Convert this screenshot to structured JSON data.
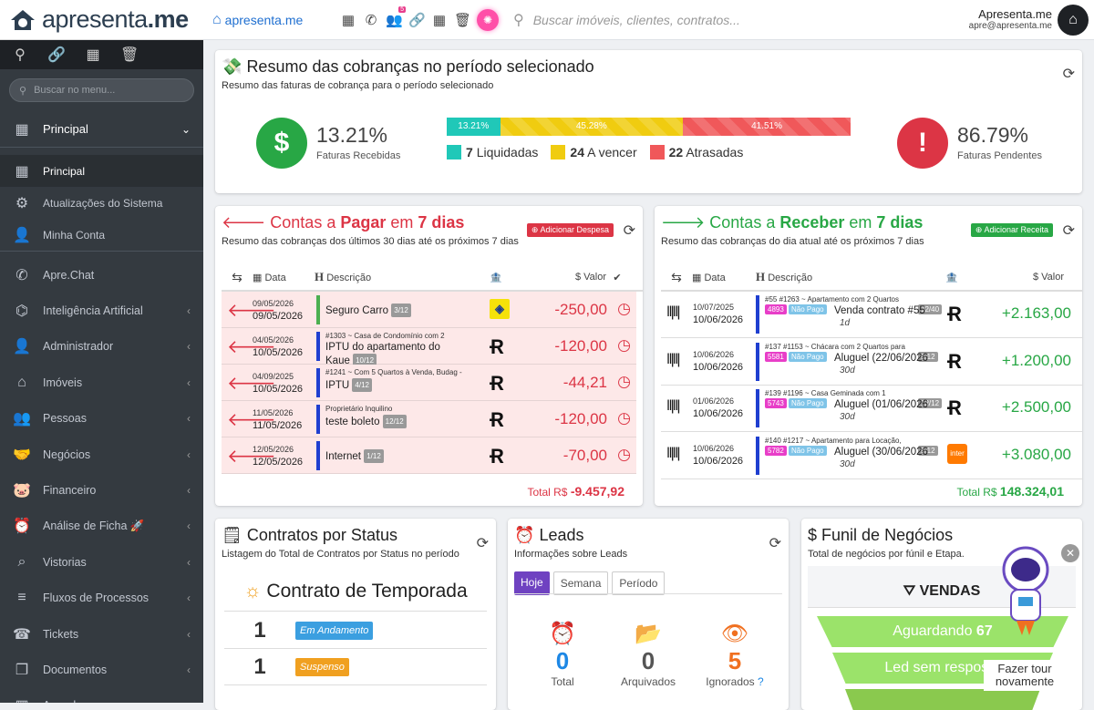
{
  "app": {
    "brand": "apresenta.me",
    "brand_prefix": "apresenta",
    "brand_suffix": ".me"
  },
  "sidebar": {
    "search_placeholder": "Buscar no menu...",
    "main_label": "Principal",
    "subitems": [
      {
        "label": "Principal"
      },
      {
        "label": "Atualizações do Sistema"
      },
      {
        "label": "Minha Conta"
      }
    ],
    "items": [
      {
        "label": "Apre.Chat",
        "icon": "whatsapp-icon",
        "glyph": "✆",
        "chevron": false
      },
      {
        "label": "Inteligência Artificial",
        "icon": "robot-icon",
        "glyph": "⌬",
        "chevron": true
      },
      {
        "label": "Administrador",
        "icon": "user-tie-icon",
        "glyph": "👤",
        "chevron": true
      },
      {
        "label": "Imóveis",
        "icon": "home-icon",
        "glyph": "⌂",
        "chevron": true
      },
      {
        "label": "Pessoas",
        "icon": "people-icon",
        "glyph": "👥",
        "chevron": true
      },
      {
        "label": "Negócios",
        "icon": "handshake-icon",
        "glyph": "🤝",
        "chevron": true
      },
      {
        "label": "Financeiro",
        "icon": "piggy-bank-icon",
        "glyph": "🐷",
        "chevron": true
      },
      {
        "label": "Análise de Ficha 🚀",
        "icon": "user-clock-icon",
        "glyph": "⏰",
        "chevron": true
      },
      {
        "label": "Vistorias",
        "icon": "house-search-icon",
        "glyph": "⌕",
        "chevron": true
      },
      {
        "label": "Fluxos de Processos",
        "icon": "filter-icon",
        "glyph": "≡",
        "chevron": true
      },
      {
        "label": "Tickets",
        "icon": "headset-icon",
        "glyph": "☎",
        "chevron": true
      },
      {
        "label": "Documentos",
        "icon": "copy-icon",
        "glyph": "❐",
        "chevron": true
      },
      {
        "label": "Agenda",
        "icon": "calendar-icon",
        "glyph": "▦",
        "chevron": true
      }
    ]
  },
  "topbar": {
    "search_placeholder": "Buscar imóveis, clientes, contratos...",
    "user_name": "Apresenta.me",
    "user_email": "apre@apresenta.me",
    "badge": "5"
  },
  "summary": {
    "title": "Resumo das cobranças no período selecionado",
    "subtitle": "Resumo das faturas de cobrança para o período selecionado",
    "received_pct": "13.21%",
    "received_label": "Faturas Recebidas",
    "pending_pct": "86.79%",
    "pending_label": "Faturas Pendentes",
    "bar": [
      {
        "label": "13.21%",
        "value": 13.21,
        "color": "#20c8b8"
      },
      {
        "label": "45.28%",
        "value": 45.28,
        "color": "#f0cc10"
      },
      {
        "label": "41.51%",
        "value": 41.51,
        "color": "#f0585a"
      }
    ],
    "legend": [
      {
        "count": "7",
        "label": "Liquidadas",
        "color": "#20c8b8"
      },
      {
        "count": "24",
        "label": "A vencer",
        "color": "#f0cc10"
      },
      {
        "count": "22",
        "label": "Atrasadas",
        "color": "#f0585a"
      }
    ]
  },
  "pagar": {
    "title_pre": "Contas a ",
    "title_b": "Pagar",
    "title_mid": " em ",
    "title_days": "7 dias",
    "subtitle": "Resumo das cobranças dos últimos 30 dias até os próximos 7 dias",
    "button": "Adicionar Despesa",
    "headers": {
      "date": "Data",
      "desc": "Descrição",
      "value": "Valor"
    },
    "rows": [
      {
        "d1": "09/05/2026",
        "d2": "09/05/2026",
        "ref": "",
        "desc": "Seguro Carro",
        "tag": "3/12",
        "value": "-250,00",
        "bar": "#4caf50",
        "logo": "bb"
      },
      {
        "d1": "04/05/2026",
        "d2": "10/05/2026",
        "ref": "#1303 ~ Casa de Condomínio com 2",
        "desc": "IPTU do apartamento do Kaue",
        "tag": "10/12",
        "value": "-120,00",
        "bar": "#1f3fd0",
        "logo": "r"
      },
      {
        "d1": "04/09/2025",
        "d2": "10/05/2026",
        "ref": "#1241 ~ Com 5 Quartos à Venda, Budag -",
        "desc": "IPTU",
        "tag": "4/12",
        "value": "-44,21",
        "bar": "#1f3fd0",
        "logo": "r"
      },
      {
        "d1": "11/05/2026",
        "d2": "11/05/2026",
        "ref": "Proprietário  Inquilino",
        "desc": "teste boleto",
        "tag": "12/12",
        "value": "-120,00",
        "bar": "#1f3fd0",
        "logo": "r"
      },
      {
        "d1": "12/05/2026",
        "d2": "12/05/2026",
        "ref": "",
        "desc": "Internet",
        "tag": "1/12",
        "value": "-70,00",
        "bar": "#1f3fd0",
        "logo": "r"
      }
    ],
    "total_label": "Total R$",
    "total": "-9.457,92"
  },
  "receber": {
    "title_pre": "Contas a ",
    "title_b": "Receber",
    "title_mid": " em ",
    "title_days": "7 dias",
    "subtitle": "Resumo das cobranças do dia atual até os próximos 7 dias",
    "button": "Adicionar Receita",
    "headers": {
      "date": "Data",
      "desc": "Descrição",
      "value": "Valor"
    },
    "rows": [
      {
        "d1": "10/07/2025",
        "d2": "10/06/2026",
        "ref": "#55  #1263 ~ Apartamento com 2 Quartos",
        "code": "4893",
        "status": "Não Pago",
        "tag": "12/40",
        "desc": "Venda contrato #55",
        "due": "1d",
        "value": "+2.163,00",
        "logo": "r"
      },
      {
        "d1": "10/06/2026",
        "d2": "10/06/2026",
        "ref": "#137  #1153 ~ Chácara com 2 Quartos para",
        "code": "5581",
        "status": "Não Pago",
        "tag": "9/12",
        "desc": "Aluguel (22/06/2026",
        "due": "30d",
        "value": "+1.200,00",
        "logo": "r"
      },
      {
        "d1": "01/06/2026",
        "d2": "10/06/2026",
        "ref": "#139  #1196 ~ Casa Geminada com 1",
        "code": "5743",
        "status": "Não Pago",
        "tag": "12/12",
        "desc": "Aluguel (01/06/2026",
        "due": "30d",
        "value": "+2.500,00",
        "logo": "r"
      },
      {
        "d1": "10/06/2026",
        "d2": "10/06/2026",
        "ref": "#140  #1217 ~ Apartamento para Locação,",
        "code": "5782",
        "status": "Não Pago",
        "tag": "9/12",
        "desc": "Aluguel (30/06/2026",
        "due": "30d",
        "value": "+3.080,00",
        "logo": "inter"
      }
    ],
    "total_label": "Total R$",
    "total": "148.324,01"
  },
  "contratos": {
    "title": "Contratos por Status",
    "subtitle": "Listagem do Total de Contratos por Status no período",
    "section": "Contrato de Temporada",
    "rows": [
      {
        "count": "1",
        "label": "Em Andamento",
        "color": "#3b9fe0"
      },
      {
        "count": "1",
        "label": "Suspenso",
        "color": "#f0a020"
      }
    ]
  },
  "leads": {
    "title": "Leads",
    "subtitle": "Informações sobre Leads",
    "tabs": [
      "Hoje",
      "Semana",
      "Período"
    ],
    "stats": [
      {
        "value": "0",
        "label": "Total",
        "color": "#1e88e5"
      },
      {
        "value": "0",
        "label": "Arquivados",
        "color": "#555"
      },
      {
        "value": "5",
        "label": "Ignorados",
        "color": "#f07020"
      }
    ]
  },
  "funil": {
    "title": "Funil de Negócios",
    "subtitle": "Total de negócios por fúnil e Etapa.",
    "name": "VENDAS",
    "steps": [
      {
        "label": "Aguardando",
        "count": "67"
      },
      {
        "label": "Led sem resposta",
        "count": ""
      }
    ],
    "tour": "Fazer tour novamente"
  }
}
